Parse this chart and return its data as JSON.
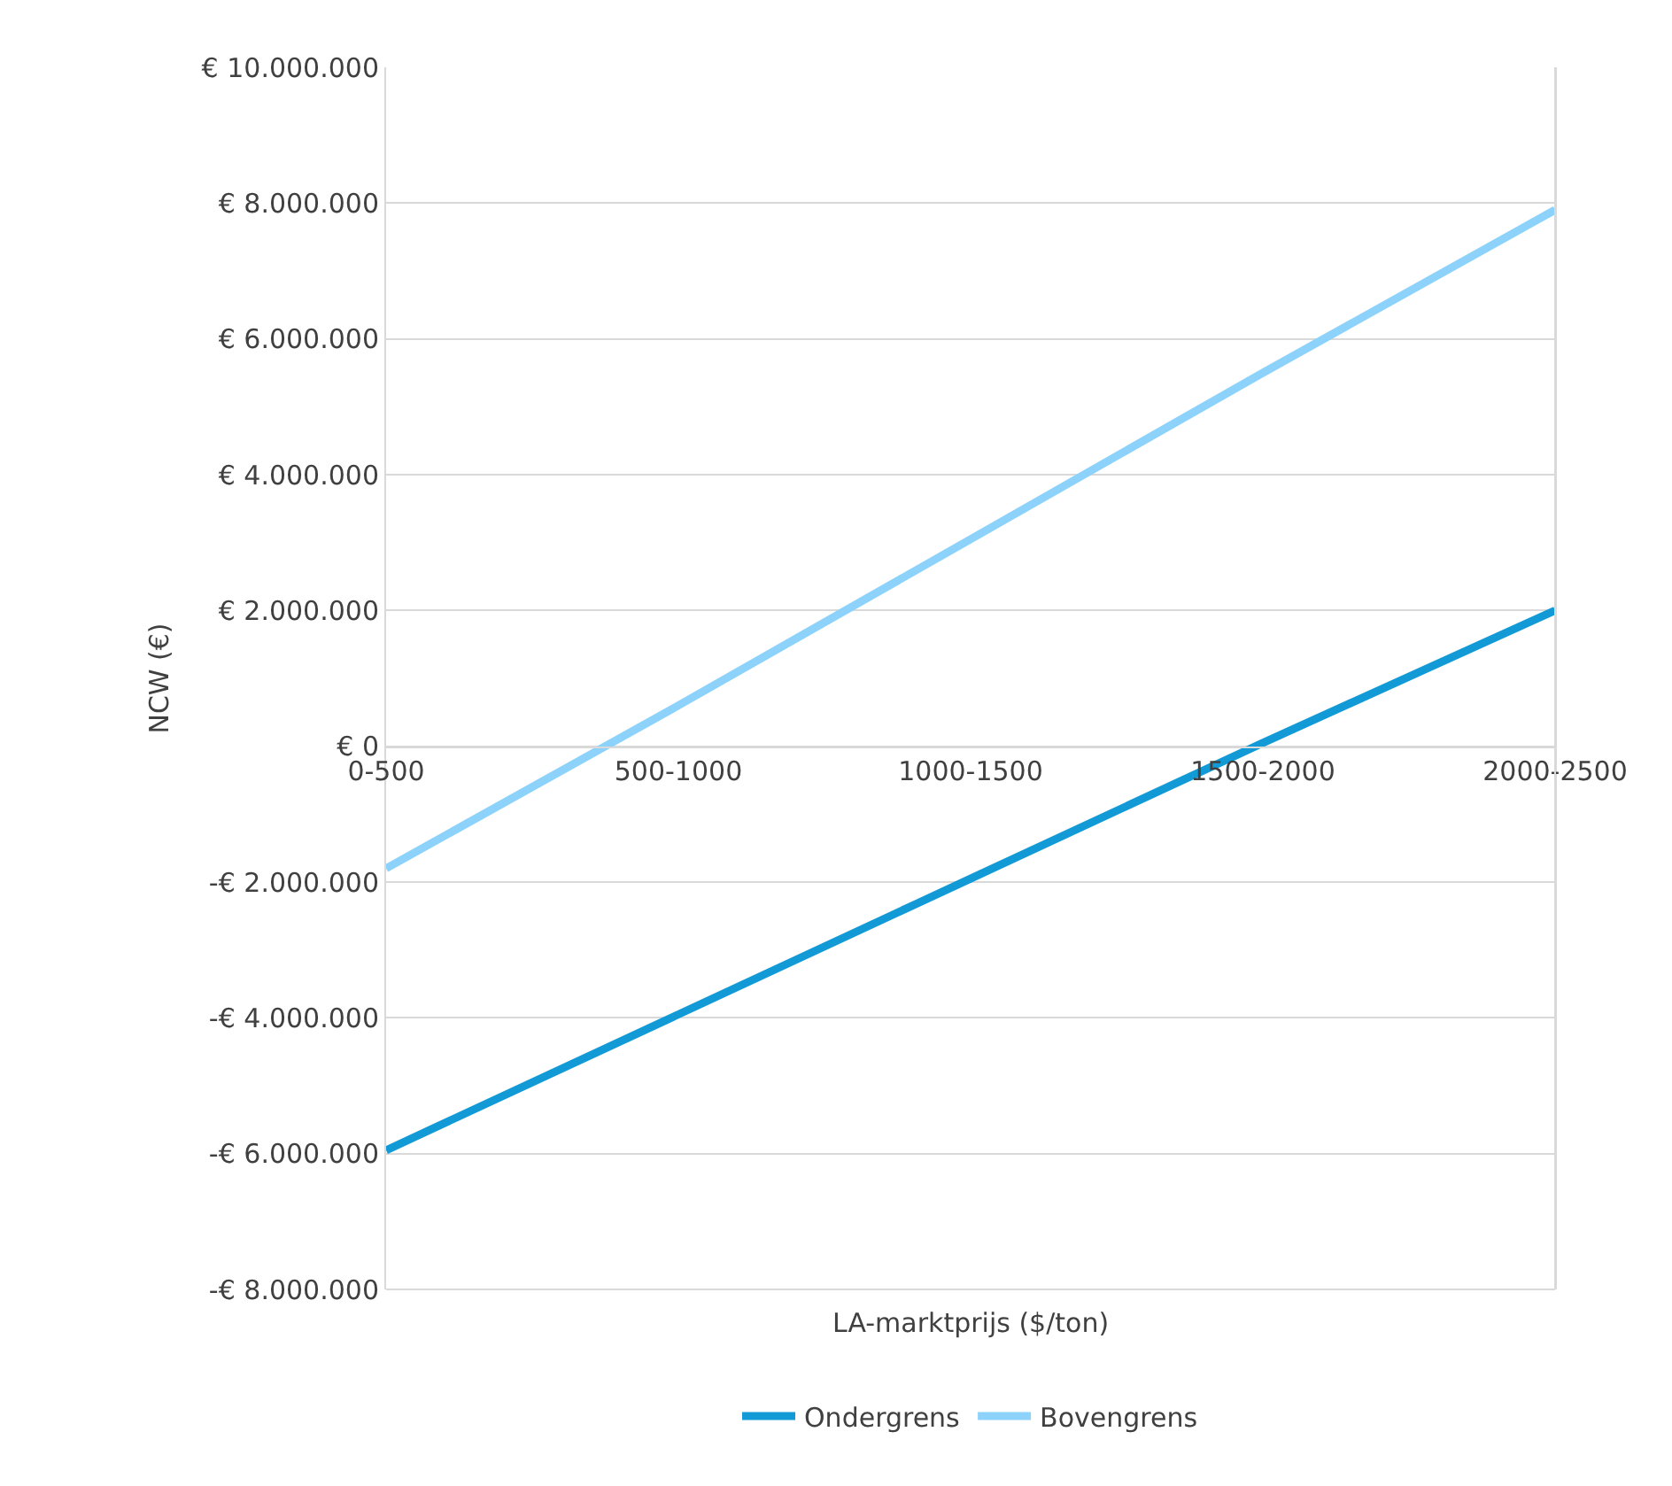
{
  "chart_data": {
    "type": "line",
    "xlabel": "LA-marktprijs ($/ton)",
    "ylabel": "NCW (€)",
    "categories": [
      "0-500",
      "500-1000",
      "1000-1500",
      "1500-2000",
      "2000-2500"
    ],
    "series": [
      {
        "name": "Ondergrens",
        "color": "#119ad6",
        "values": [
          -5950000,
          -3950000,
          -1950000,
          50000,
          2000000
        ]
      },
      {
        "name": "Bovengrens",
        "color": "#8dd2fa",
        "values": [
          -1800000,
          600000,
          3050000,
          5500000,
          7900000
        ]
      }
    ],
    "ylim": [
      -8000000,
      10000000
    ],
    "yticks": [
      {
        "value": -8000000,
        "label": "-€ 8.000.000"
      },
      {
        "value": -6000000,
        "label": "-€ 6.000.000"
      },
      {
        "value": -4000000,
        "label": "-€ 4.000.000"
      },
      {
        "value": -2000000,
        "label": "-€ 2.000.000"
      },
      {
        "value": 0,
        "label": "€ 0"
      },
      {
        "value": 2000000,
        "label": "€ 2.000.000"
      },
      {
        "value": 4000000,
        "label": "€ 4.000.000"
      },
      {
        "value": 6000000,
        "label": "€ 6.000.000"
      },
      {
        "value": 8000000,
        "label": "€ 8.000.000"
      },
      {
        "value": 10000000,
        "label": "€ 10.000.000"
      }
    ],
    "grid": "y",
    "legend": "bottom",
    "line_style": "solid"
  }
}
